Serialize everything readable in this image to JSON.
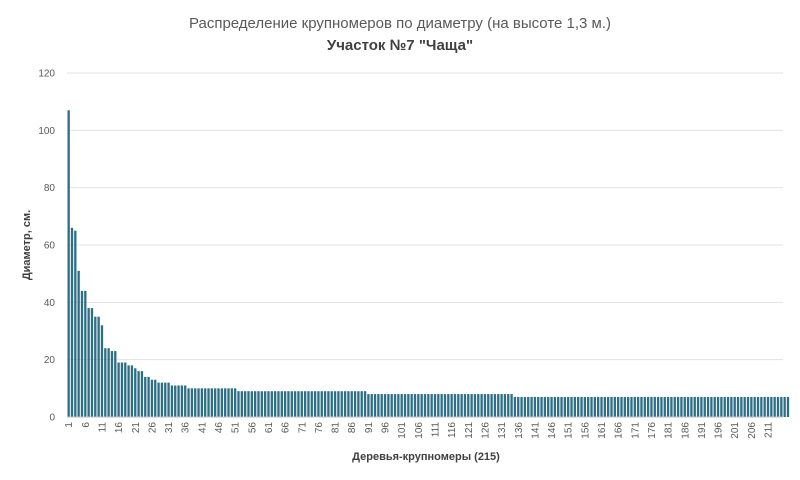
{
  "chart_data": {
    "type": "bar",
    "title": "Распределение крупномеров по диаметру (на высоте 1,3 м.)",
    "subtitle": "Участок №7 \"Чаща\"",
    "xlabel": "Деревья-крупномеры (215)",
    "ylabel": "Диаметр, см.",
    "ylim": [
      0,
      120
    ],
    "yticks": [
      "0",
      "20",
      "40",
      "60",
      "80",
      "100",
      "120"
    ],
    "xticks": [
      "1",
      "6",
      "11",
      "16",
      "21",
      "26",
      "31",
      "36",
      "41",
      "46",
      "51",
      "56",
      "61",
      "66",
      "71",
      "76",
      "81",
      "86",
      "91",
      "96",
      "101",
      "106",
      "111",
      "116",
      "121",
      "126",
      "131",
      "136",
      "141",
      "146",
      "151",
      "156",
      "161",
      "166",
      "171",
      "176",
      "181",
      "186",
      "191",
      "196",
      "201",
      "206",
      "211"
    ],
    "grid": true,
    "legend": "none",
    "bar_color": "#2f6f86",
    "x_count": 215,
    "values": [
      107,
      66,
      65,
      51,
      44,
      44,
      38,
      38,
      35,
      35,
      32,
      24,
      24,
      23,
      23,
      19,
      19,
      19,
      18,
      18,
      17,
      16,
      16,
      14,
      14,
      13,
      13,
      12,
      12,
      12,
      12,
      11,
      11,
      11,
      11,
      11,
      10,
      10,
      10,
      10,
      10,
      10,
      10,
      10,
      10,
      10,
      10,
      10,
      10,
      10,
      10,
      9,
      9,
      9,
      9,
      9,
      9,
      9,
      9,
      9,
      9,
      9,
      9,
      9,
      9,
      9,
      9,
      9,
      9,
      9,
      9,
      9,
      9,
      9,
      9,
      9,
      9,
      9,
      9,
      9,
      9,
      9,
      9,
      9,
      9,
      9,
      9,
      9,
      9,
      9,
      8,
      8,
      8,
      8,
      8,
      8,
      8,
      8,
      8,
      8,
      8,
      8,
      8,
      8,
      8,
      8,
      8,
      8,
      8,
      8,
      8,
      8,
      8,
      8,
      8,
      8,
      8,
      8,
      8,
      8,
      8,
      8,
      8,
      8,
      8,
      8,
      8,
      8,
      8,
      8,
      8,
      8,
      8,
      8,
      7,
      7,
      7,
      7,
      7,
      7,
      7,
      7,
      7,
      7,
      7,
      7,
      7,
      7,
      7,
      7,
      7,
      7,
      7,
      7,
      7,
      7,
      7,
      7,
      7,
      7,
      7,
      7,
      7,
      7,
      7,
      7,
      7,
      7,
      7,
      7,
      7,
      7,
      7,
      7,
      7,
      7,
      7,
      7,
      7,
      7,
      7,
      7,
      7,
      7,
      7,
      7,
      7,
      7,
      7,
      7,
      7,
      7,
      7,
      7,
      7,
      7,
      7,
      7,
      7,
      7,
      7,
      7,
      7,
      7,
      7,
      7,
      7,
      7,
      7,
      7,
      7,
      7,
      7,
      7,
      7,
      7,
      7
    ]
  }
}
